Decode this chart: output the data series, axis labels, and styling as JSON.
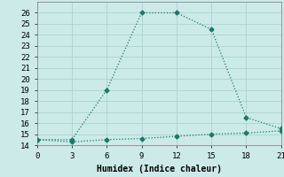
{
  "title": "",
  "xlabel": "Humidex (Indice chaleur)",
  "background_color": "#cceae8",
  "grid_color": "#aad4d0",
  "line_color": "#1a7a6a",
  "x_line1": [
    0,
    3,
    6,
    9,
    12,
    15,
    18,
    21
  ],
  "y_line1": [
    14.5,
    14.5,
    19,
    26,
    26,
    24.5,
    16.5,
    15.5
  ],
  "x_line2": [
    0,
    3,
    6,
    9,
    12,
    15,
    18,
    21
  ],
  "y_line2": [
    14.5,
    14.3,
    14.5,
    14.6,
    14.8,
    15.0,
    15.1,
    15.3
  ],
  "xlim": [
    0,
    21
  ],
  "ylim": [
    14,
    27
  ],
  "xticks": [
    0,
    3,
    6,
    9,
    12,
    15,
    18,
    21
  ],
  "yticks": [
    14,
    15,
    16,
    17,
    18,
    19,
    20,
    21,
    22,
    23,
    24,
    25,
    26
  ],
  "axis_fontsize": 7,
  "tick_fontsize": 6.5
}
